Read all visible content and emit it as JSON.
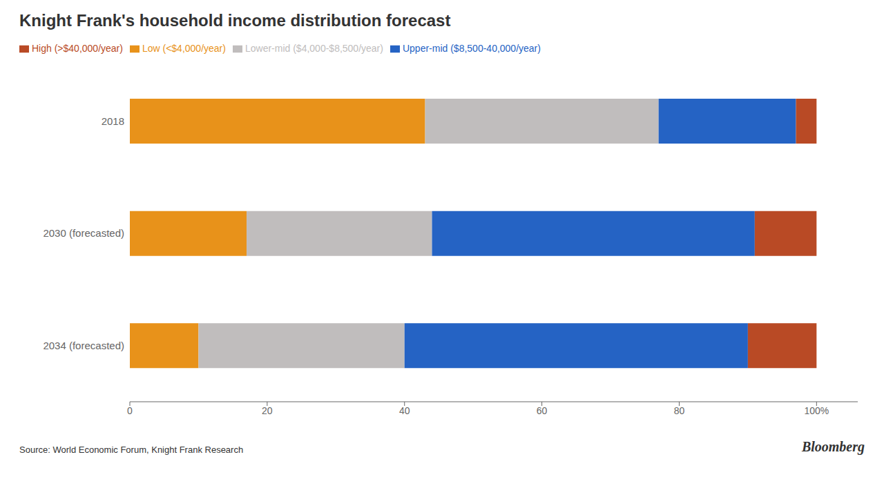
{
  "chart_data": {
    "type": "bar",
    "title": "Knight Frank's household income distribution forecast",
    "orientation": "horizontal",
    "stacked": true,
    "grid": false,
    "legend": "top-left",
    "categories": [
      "2018",
      "2030 (forecasted)",
      "2034 (forecasted)"
    ],
    "series": [
      {
        "name": "Low (<$4,000/year)",
        "color": "#E8921A",
        "values": [
          43,
          17,
          10
        ]
      },
      {
        "name": "Lower-mid ($4,000-$8,500/year)",
        "color": "#C0BDBD",
        "values": [
          34,
          27,
          30
        ]
      },
      {
        "name": "Upper-mid ($8,500-40,000/year)",
        "color": "#2563C4",
        "values": [
          20,
          47,
          50
        ]
      },
      {
        "name": "High (>$40,000/year)",
        "color": "#B94A25",
        "values": [
          3,
          9,
          10
        ]
      }
    ],
    "xlim": [
      0,
      106
    ],
    "xticks": [
      0,
      20,
      40,
      60,
      80,
      {
        "value": 100,
        "label": "100%"
      }
    ],
    "annotations": [
      "Source: World Economic Forum, Knight Frank Research",
      "Bloomberg"
    ]
  }
}
